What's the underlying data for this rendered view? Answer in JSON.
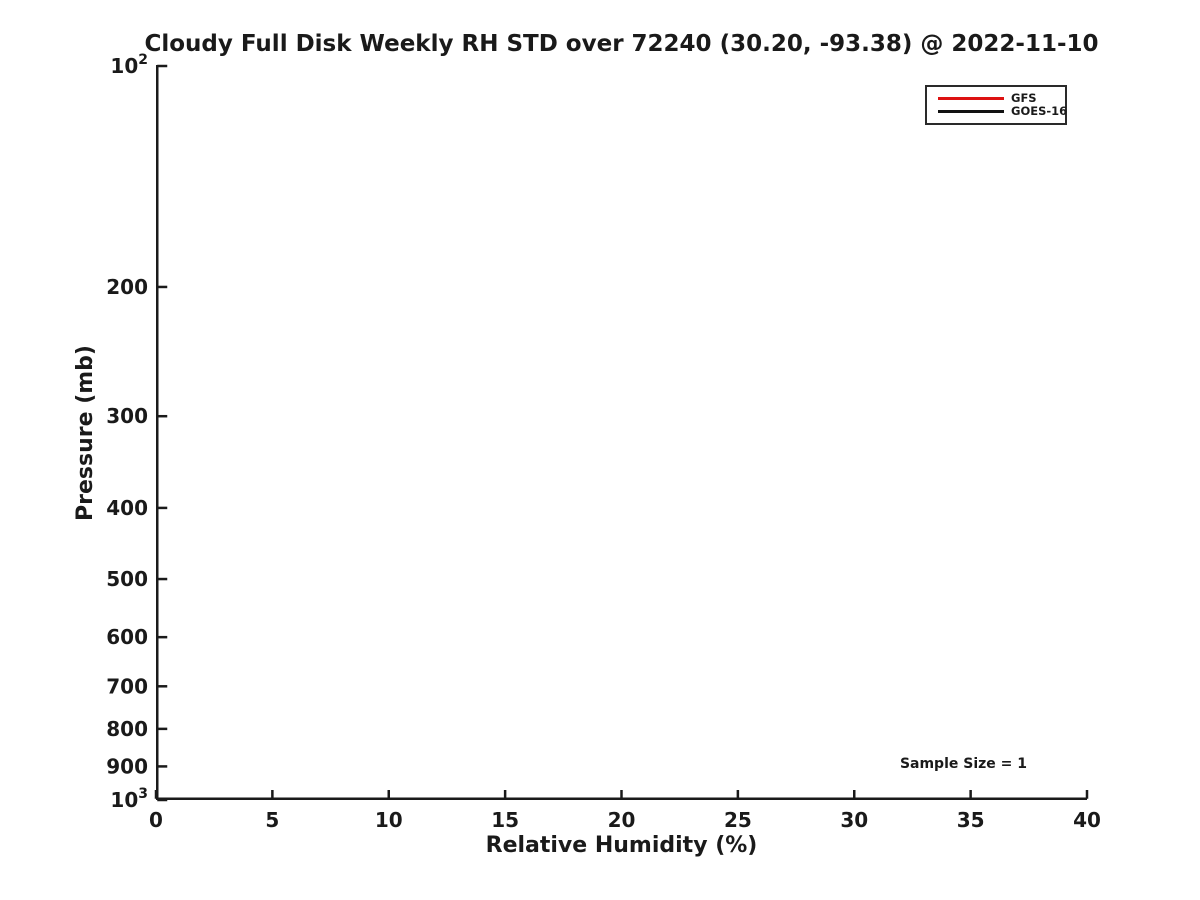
{
  "figure": {
    "background": "#ffffff",
    "text_color": "#1a1a1a",
    "spine_color": "#1a1a1a"
  },
  "chart_data": {
    "type": "line",
    "title": "Cloudy Full Disk Weekly RH STD over 72240 (30.20, -93.38) @ 2022-11-10",
    "xlabel": "Relative Humidity (%)",
    "ylabel": "Pressure (mb)",
    "xlim": [
      0,
      40
    ],
    "xticks": [
      0,
      5,
      10,
      15,
      20,
      25,
      30,
      35,
      40
    ],
    "yscale": "log",
    "ylim": [
      100,
      1000
    ],
    "y_axis_inverted": true,
    "yticks": [
      {
        "value": 100,
        "base": "10",
        "exp": "2"
      },
      {
        "value": 200,
        "label": "200"
      },
      {
        "value": 300,
        "label": "300"
      },
      {
        "value": 400,
        "label": "400"
      },
      {
        "value": 500,
        "label": "500"
      },
      {
        "value": 600,
        "label": "600"
      },
      {
        "value": 700,
        "label": "700"
      },
      {
        "value": 800,
        "label": "800"
      },
      {
        "value": 900,
        "label": "900"
      },
      {
        "value": 1000,
        "base": "10",
        "exp": "3"
      }
    ],
    "grid": false,
    "legend": {
      "position": "top-right",
      "entries": [
        {
          "name": "GFS",
          "color": "#dd1111"
        },
        {
          "name": "GOES-16",
          "color": "#111111"
        }
      ]
    },
    "series": [
      {
        "name": "GFS",
        "color": "#dd1111",
        "points": []
      },
      {
        "name": "GOES-16",
        "color": "#111111",
        "points": []
      }
    ],
    "annotations": [
      {
        "text": "Sample Size = 1"
      }
    ]
  }
}
